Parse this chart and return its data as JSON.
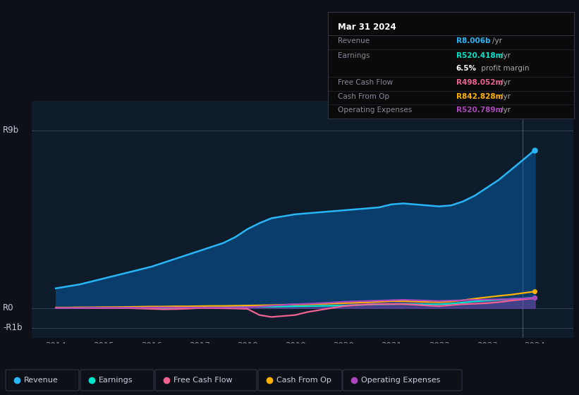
{
  "bg_color": "#0d1117",
  "plot_bg_color": "#0d1b2a",
  "years": [
    2014,
    2014.25,
    2014.5,
    2014.75,
    2015,
    2015.25,
    2015.5,
    2015.75,
    2016,
    2016.25,
    2016.5,
    2016.75,
    2017,
    2017.25,
    2017.5,
    2017.75,
    2018,
    2018.25,
    2018.5,
    2018.75,
    2019,
    2019.25,
    2019.5,
    2019.75,
    2020,
    2020.25,
    2020.5,
    2020.75,
    2021,
    2021.25,
    2021.5,
    2021.75,
    2022,
    2022.25,
    2022.5,
    2022.75,
    2023,
    2023.25,
    2023.5,
    2023.75,
    2024
  ],
  "revenue": [
    1.0,
    1.1,
    1.2,
    1.35,
    1.5,
    1.65,
    1.8,
    1.95,
    2.1,
    2.3,
    2.5,
    2.7,
    2.9,
    3.1,
    3.3,
    3.6,
    4.0,
    4.3,
    4.55,
    4.65,
    4.75,
    4.8,
    4.85,
    4.9,
    4.95,
    5.0,
    5.05,
    5.1,
    5.25,
    5.3,
    5.25,
    5.2,
    5.15,
    5.2,
    5.4,
    5.7,
    6.1,
    6.5,
    7.0,
    7.5,
    8.006
  ],
  "earnings": [
    0.02,
    0.02,
    0.02,
    0.03,
    0.03,
    0.03,
    0.02,
    0.01,
    -0.01,
    -0.02,
    -0.01,
    0.01,
    0.03,
    0.04,
    0.05,
    0.06,
    0.07,
    0.07,
    0.07,
    0.08,
    0.09,
    0.1,
    0.11,
    0.12,
    0.13,
    0.15,
    0.17,
    0.19,
    0.2,
    0.21,
    0.2,
    0.19,
    0.19,
    0.22,
    0.28,
    0.34,
    0.38,
    0.42,
    0.46,
    0.49,
    0.52
  ],
  "free_cash_flow": [
    0.01,
    0.01,
    0.01,
    0.0,
    0.0,
    0.0,
    0.0,
    -0.02,
    -0.04,
    -0.06,
    -0.05,
    -0.03,
    0.0,
    0.0,
    -0.01,
    -0.02,
    -0.04,
    -0.35,
    -0.45,
    -0.4,
    -0.35,
    -0.2,
    -0.1,
    0.0,
    0.1,
    0.15,
    0.18,
    0.2,
    0.2,
    0.2,
    0.17,
    0.13,
    0.1,
    0.15,
    0.2,
    0.22,
    0.25,
    0.3,
    0.38,
    0.44,
    0.498
  ],
  "cash_from_op": [
    0.03,
    0.03,
    0.04,
    0.04,
    0.05,
    0.05,
    0.06,
    0.07,
    0.08,
    0.08,
    0.09,
    0.09,
    0.1,
    0.11,
    0.11,
    0.12,
    0.13,
    0.14,
    0.15,
    0.17,
    0.18,
    0.19,
    0.21,
    0.23,
    0.25,
    0.27,
    0.29,
    0.32,
    0.35,
    0.35,
    0.33,
    0.31,
    0.3,
    0.33,
    0.4,
    0.48,
    0.55,
    0.62,
    0.68,
    0.76,
    0.843
  ],
  "operating_expenses": [
    0.01,
    0.01,
    0.01,
    0.02,
    0.02,
    0.02,
    0.02,
    0.02,
    0.03,
    0.03,
    0.03,
    0.03,
    0.03,
    0.03,
    0.03,
    0.04,
    0.05,
    0.08,
    0.12,
    0.16,
    0.2,
    0.22,
    0.25,
    0.28,
    0.32,
    0.34,
    0.36,
    0.38,
    0.4,
    0.42,
    0.4,
    0.38,
    0.36,
    0.38,
    0.4,
    0.42,
    0.43,
    0.44,
    0.46,
    0.49,
    0.521
  ],
  "revenue_color": "#29b6f6",
  "earnings_color": "#00e5cc",
  "fcf_color": "#f06292",
  "cashop_color": "#ffb300",
  "opex_color": "#ab47bc",
  "revenue_fill": "#0a3d6b",
  "ylim": [
    -1.5,
    10.5
  ],
  "xlim": [
    2013.5,
    2024.8
  ],
  "xtick_years": [
    2014,
    2015,
    2016,
    2017,
    2018,
    2019,
    2020,
    2021,
    2022,
    2023,
    2024
  ],
  "info_box": {
    "title": "Mar 31 2024",
    "rows": [
      {
        "label": "Revenue",
        "value": "R8.006b",
        "unit": "/yr",
        "color": "#29b6f6",
        "separator": true
      },
      {
        "label": "Earnings",
        "value": "R520.418m",
        "unit": "/yr",
        "color": "#00e5cc",
        "separator": false
      },
      {
        "label": "",
        "value": "6.5%",
        "unit": " profit margin",
        "color": "#ffffff",
        "bold_value": true,
        "separator": true
      },
      {
        "label": "Free Cash Flow",
        "value": "R498.052m",
        "unit": "/yr",
        "color": "#f06292",
        "separator": true
      },
      {
        "label": "Cash From Op",
        "value": "R842.828m",
        "unit": "/yr",
        "color": "#ffb300",
        "separator": true
      },
      {
        "label": "Operating Expenses",
        "value": "R520.789m",
        "unit": "/yr",
        "color": "#ab47bc",
        "separator": true
      }
    ]
  },
  "legend": [
    {
      "label": "Revenue",
      "color": "#29b6f6"
    },
    {
      "label": "Earnings",
      "color": "#00e5cc"
    },
    {
      "label": "Free Cash Flow",
      "color": "#f06292"
    },
    {
      "label": "Cash From Op",
      "color": "#ffb300"
    },
    {
      "label": "Operating Expenses",
      "color": "#ab47bc"
    }
  ]
}
